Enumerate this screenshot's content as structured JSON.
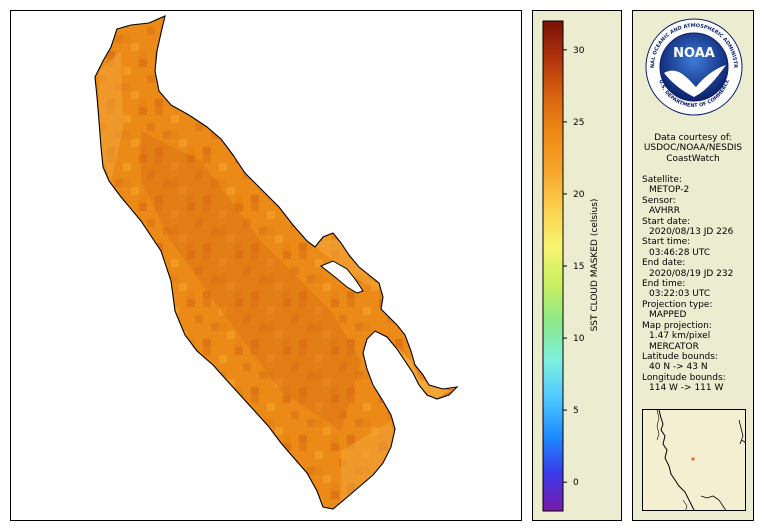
{
  "colorbar": {
    "title": "SST CLOUD MASKED (celsius)",
    "min": -2,
    "max": 32,
    "ticks": [
      "0",
      "5",
      "10",
      "15",
      "20",
      "25",
      "30"
    ],
    "tick_values": [
      0,
      5,
      10,
      15,
      20,
      25,
      30
    ],
    "colors": [
      "#7a1aa8",
      "#3a3aea",
      "#1e8cff",
      "#4fc8ff",
      "#7ef0e0",
      "#8ae88a",
      "#c8f060",
      "#f7f570",
      "#fbd14f",
      "#f6a52e",
      "#ef8a14",
      "#d86410",
      "#b0340c",
      "#7a1008"
    ]
  },
  "logo": {
    "text": "NOAA",
    "ring_text": "NATIONAL OCEANIC AND ATMOSPHERIC ADMINISTRATION",
    "bottom_text": "U.S. DEPARTMENT OF COMMERCE",
    "colors": {
      "ring": "#ffffff",
      "disc": "#1f4fa8",
      "disc_dark": "#0b1f6a",
      "bird": "#ffffff"
    }
  },
  "courtesy": {
    "line1": "Data courtesy of:",
    "line2": "USDOC/NOAA/NESDIS",
    "line3": "CoastWatch"
  },
  "meta": [
    {
      "label": "Satellite:",
      "value": "METOP-2"
    },
    {
      "label": "Sensor:",
      "value": "AVHRR"
    },
    {
      "label": "Start date:",
      "value": "2020/08/13 JD 226"
    },
    {
      "label": "Start time:",
      "value": "03:46:28 UTC"
    },
    {
      "label": "End date:",
      "value": "2020/08/19 JD 232"
    },
    {
      "label": "End time:",
      "value": "03:22:03 UTC"
    },
    {
      "label": "Projection type:",
      "value": "MAPPED"
    },
    {
      "label": "Map projection:",
      "value": "1.47 km/pixel",
      "value2": "MERCATOR"
    },
    {
      "label": "Latitude bounds:",
      "value": "40 N -> 43 N"
    },
    {
      "label": "Longitude bounds:",
      "value": "114 W -> 111 W"
    }
  ],
  "map": {
    "lake_color": "#ec8a18",
    "lake_shade_colors": [
      "#e27d16",
      "#f09a24",
      "#de7414",
      "#f3a63a"
    ],
    "background": "#ffffff",
    "outline": "#000000"
  },
  "locator": {
    "marker_color": "#e07020",
    "land_color": "#f5efd2",
    "coast_color": "#000000"
  }
}
